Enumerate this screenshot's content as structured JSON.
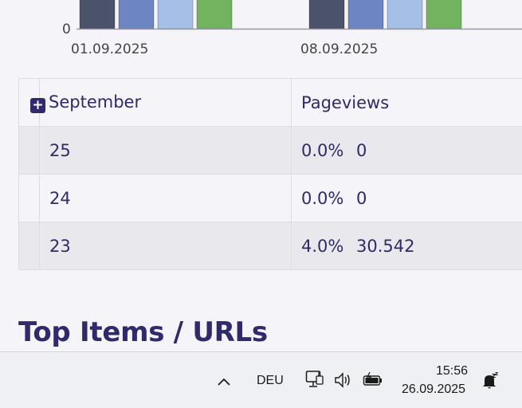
{
  "chart": {
    "y_tick_zero": "0",
    "x_ticks": [
      "01.09.2025",
      "08.09.2025"
    ],
    "colors": [
      "#4a536a",
      "#6e85c4",
      "#a6bfe6",
      "#74b35d"
    ]
  },
  "chart_data": {
    "type": "bar",
    "categories": [
      "01.09.2025",
      "08.09.2025"
    ],
    "series": [
      {
        "values": [
          1.0,
          1.0
        ]
      },
      {
        "values": [
          0.45,
          0.45
        ]
      },
      {
        "values": [
          1.0,
          1.0
        ]
      },
      {
        "values": [
          1.0,
          1.0
        ]
      }
    ],
    "ylim": [
      0,
      1
    ]
  },
  "table": {
    "header": {
      "month": "September",
      "metric": "Pageviews"
    },
    "rows": [
      {
        "day": "25",
        "percent": "0.0%",
        "value": "0"
      },
      {
        "day": "24",
        "percent": "0.0%",
        "value": "0"
      },
      {
        "day": "23",
        "percent": "4.0%",
        "value": "30.542"
      }
    ]
  },
  "section_heading": "Top Items / URLs",
  "taskbar": {
    "chevron": "^",
    "language": "DEU",
    "time": "15:56",
    "date": "26.09.2025",
    "icons": [
      "chevron-up-icon",
      "network-icon",
      "volume-icon",
      "battery-icon",
      "notification-icon"
    ]
  }
}
